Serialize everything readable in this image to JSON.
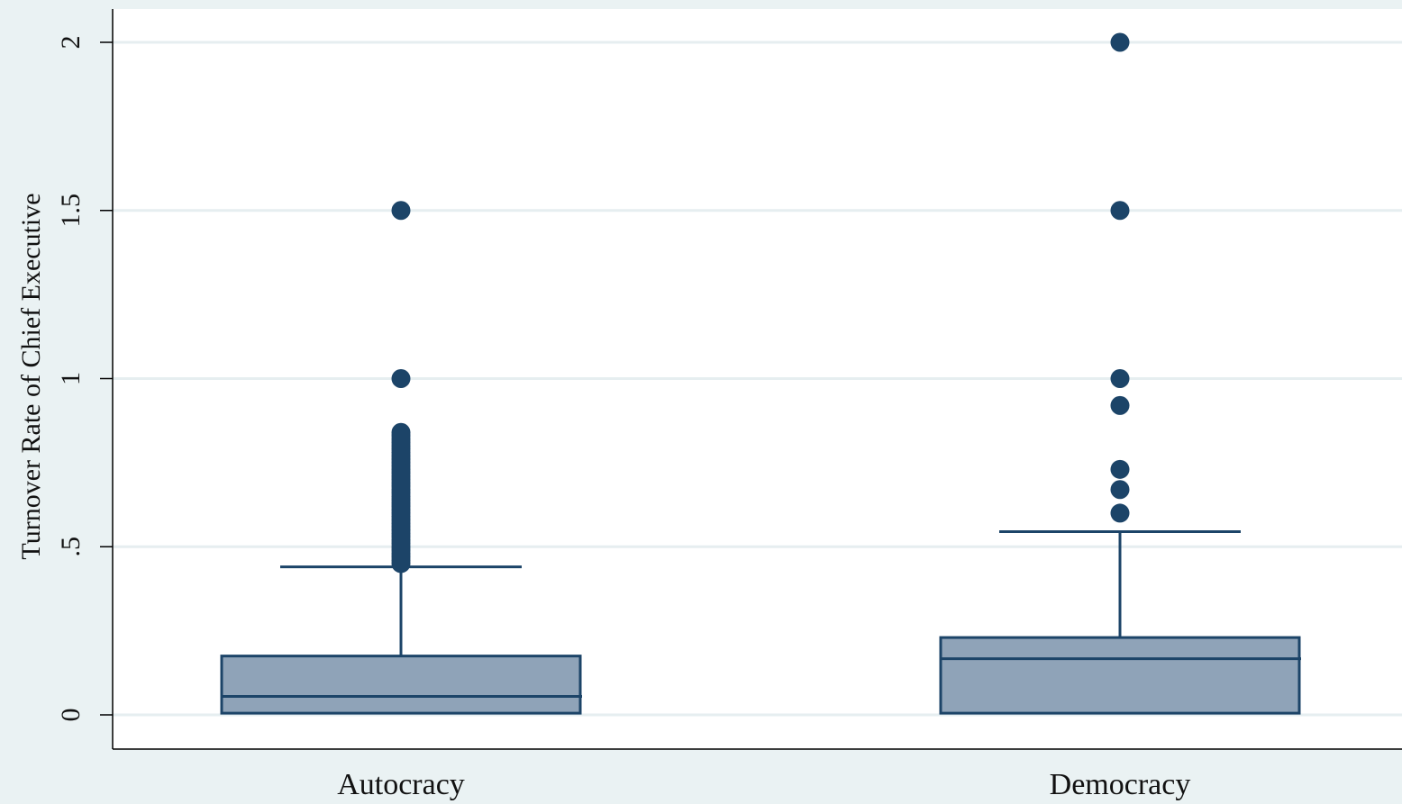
{
  "chart_data": {
    "type": "box",
    "title": "",
    "xlabel": "",
    "ylabel": "Turnover Rate of Chief Executive",
    "ylim": [
      -0.1,
      2.1
    ],
    "yticks": [
      {
        "value": 0,
        "label": "0"
      },
      {
        "value": 0.5,
        "label": ".5"
      },
      {
        "value": 1,
        "label": "1"
      },
      {
        "value": 1.5,
        "label": "1.5"
      },
      {
        "value": 2,
        "label": "2"
      }
    ],
    "grid": true,
    "legend": "none",
    "colors": {
      "box_fill": "#8fa3b8",
      "box_stroke": "#1c4468",
      "outlier": "#1c4468",
      "grid": "#e6eef0",
      "plot_bg": "#ffffff",
      "page_bg": "#eaf2f3"
    },
    "categories": [
      "Autocracy",
      "Democracy"
    ],
    "boxes": [
      {
        "category": "Autocracy",
        "min": 0.0,
        "q1": 0.005,
        "median": 0.055,
        "q3": 0.175,
        "whisker_high": 0.44,
        "outliers": [
          0.45,
          0.46,
          0.47,
          0.48,
          0.49,
          0.5,
          0.51,
          0.52,
          0.53,
          0.54,
          0.55,
          0.56,
          0.57,
          0.58,
          0.59,
          0.6,
          0.61,
          0.62,
          0.63,
          0.64,
          0.65,
          0.66,
          0.67,
          0.68,
          0.69,
          0.7,
          0.71,
          0.72,
          0.73,
          0.74,
          0.75,
          0.76,
          0.77,
          0.78,
          0.79,
          0.8,
          0.81,
          0.82,
          0.83,
          0.84,
          1.0,
          1.5
        ]
      },
      {
        "category": "Democracy",
        "min": 0.0,
        "q1": 0.005,
        "median": 0.167,
        "q3": 0.23,
        "whisker_high": 0.545,
        "outliers": [
          0.6,
          0.67,
          0.73,
          0.92,
          1.0,
          1.5,
          2.0
        ]
      }
    ]
  }
}
